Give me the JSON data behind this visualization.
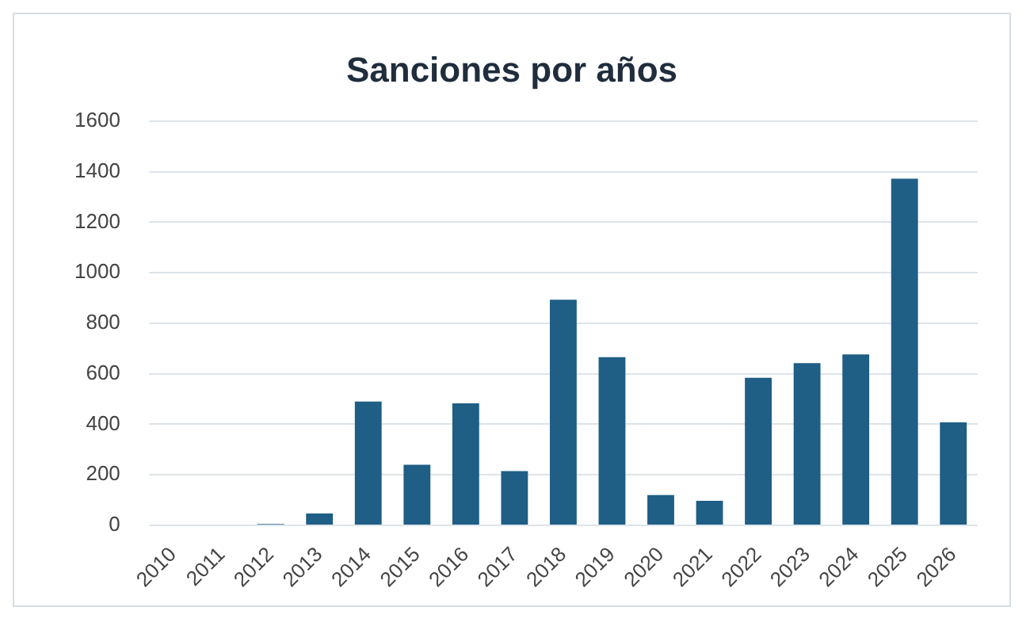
{
  "chart_data": {
    "type": "bar",
    "title": "Sanciones por años",
    "categories": [
      "2010",
      "2011",
      "2012",
      "2013",
      "2014",
      "2015",
      "2016",
      "2017",
      "2018",
      "2019",
      "2020",
      "2021",
      "2022",
      "2023",
      "2024",
      "2025",
      "2026"
    ],
    "values": [
      0,
      0,
      6,
      47,
      490,
      240,
      483,
      215,
      893,
      666,
      120,
      97,
      584,
      642,
      677,
      1372,
      408
    ],
    "color": "#1f5e85",
    "ylim": [
      0,
      1600
    ],
    "yticks": [
      0,
      200,
      400,
      600,
      800,
      1000,
      1200,
      1400,
      1600
    ],
    "grid": "y",
    "legend": false
  }
}
